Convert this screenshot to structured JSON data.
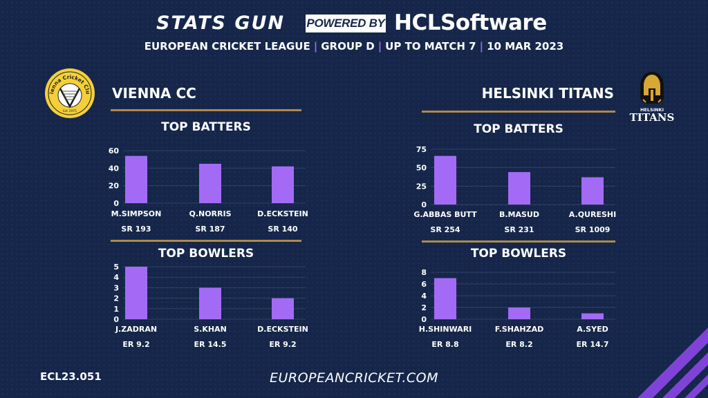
{
  "header": {
    "brand_left": "STATS GUN",
    "powered_by": "POWERED BY",
    "brand_right": "HCLSoftware",
    "league": "EUROPEAN CRICKET LEAGUE",
    "group": "GROUP  D",
    "match": "UP TO MATCH  7",
    "date": "10 MAR 2023"
  },
  "teams": {
    "left": {
      "name": "VIENNA CC",
      "logo_text": "Vienna Cricket Club",
      "logo_est": "Est 1975"
    },
    "right": {
      "name": "HELSINKI TITANS",
      "logo_text_top": "HELSINKI",
      "logo_text_main": "TITANS"
    }
  },
  "sections": {
    "batters": "TOP BATTERS",
    "bowlers": "TOP BOWLERS"
  },
  "footer": {
    "code": "ECL23.051",
    "url": "EUROPEANCRICKET.COM"
  },
  "colors": {
    "bar": "#a36bf5",
    "gold": "#b08a4a",
    "background": "#15264a",
    "separator": "#9b6cf5"
  },
  "chart_data": [
    {
      "type": "bar",
      "title": "TOP BATTERS",
      "team": "VIENNA CC",
      "categories": [
        "M.SIMPSON",
        "Q.NORRIS",
        "D.ECKSTEIN"
      ],
      "values": [
        54,
        45,
        42
      ],
      "sublabels": [
        "SR 193",
        "SR 187",
        "SR 140"
      ],
      "yticks": [
        0,
        20,
        40,
        60
      ],
      "ylim": [
        0,
        60
      ],
      "grid": true
    },
    {
      "type": "bar",
      "title": "TOP BOWLERS",
      "team": "VIENNA CC",
      "categories": [
        "J.ZADRAN",
        "S.KHAN",
        "D.ECKSTEIN"
      ],
      "values": [
        5,
        3,
        2
      ],
      "sublabels": [
        "ER 9.2",
        "ER 14.5",
        "ER 9.2"
      ],
      "yticks": [
        0,
        1,
        2,
        3,
        4,
        5
      ],
      "ylim": [
        0,
        5
      ],
      "grid": true
    },
    {
      "type": "bar",
      "title": "TOP BATTERS",
      "team": "HELSINKI TITANS",
      "categories": [
        "G.ABBAS BUTT",
        "B.MASUD",
        "A.QURESHI"
      ],
      "values": [
        66,
        44,
        37
      ],
      "sublabels": [
        "SR 254",
        "SR 231",
        "SR 1009"
      ],
      "yticks": [
        0,
        25,
        50,
        75
      ],
      "ylim": [
        0,
        75
      ],
      "grid": true
    },
    {
      "type": "bar",
      "title": "TOP BOWLERS",
      "team": "HELSINKI TITANS",
      "categories": [
        "H.SHINWARI",
        "F.SHAHZAD",
        "A.SYED"
      ],
      "values": [
        7,
        2,
        1
      ],
      "sublabels": [
        "ER 8.8",
        "ER 8.2",
        "ER 14.7"
      ],
      "yticks": [
        0,
        2,
        4,
        6,
        8
      ],
      "ylim": [
        0,
        8
      ],
      "grid": true
    }
  ]
}
